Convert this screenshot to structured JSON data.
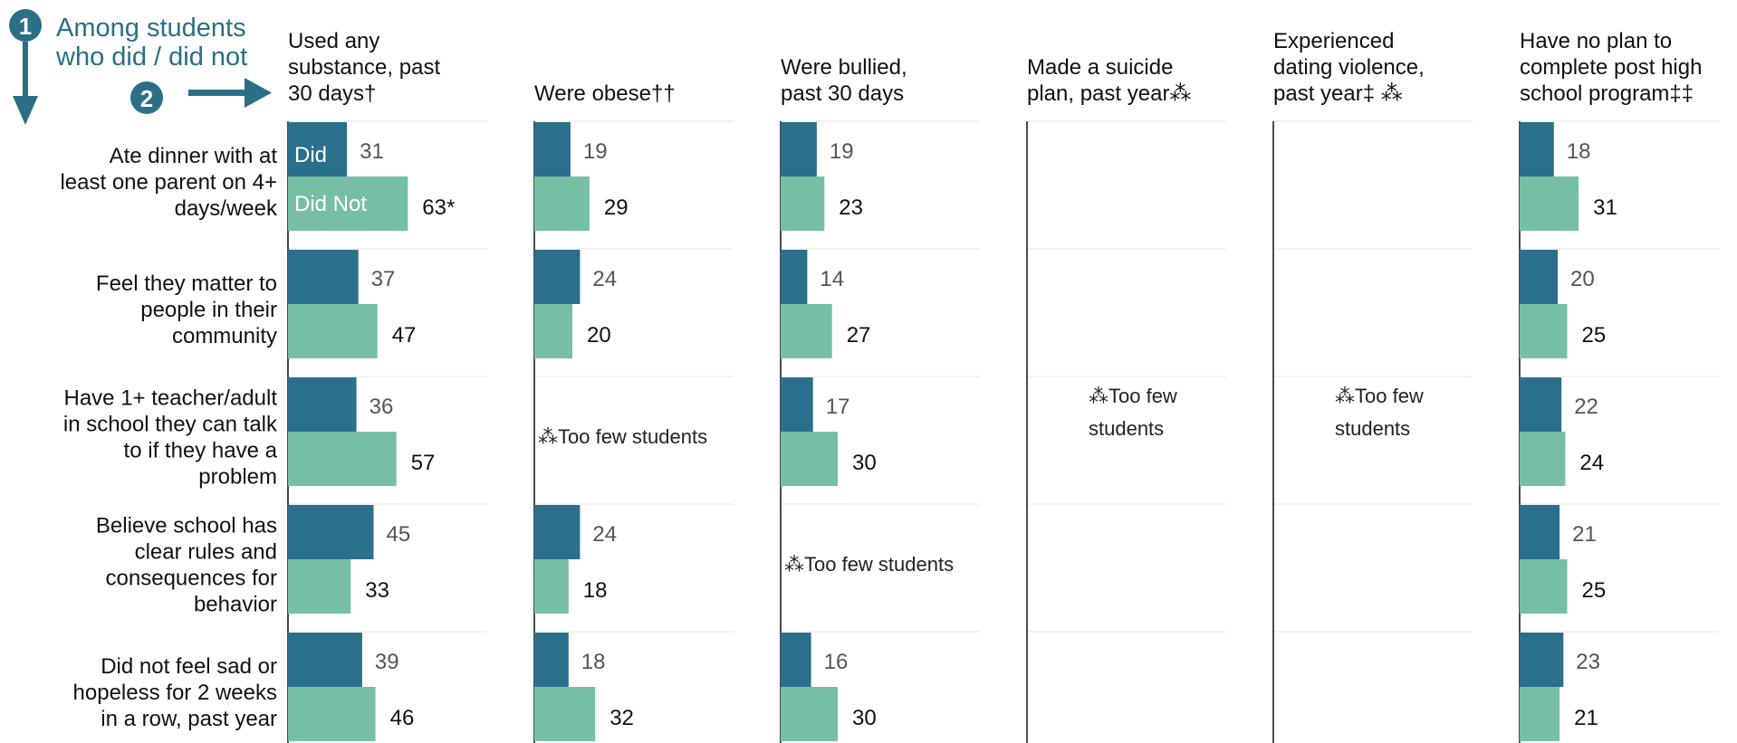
{
  "colors": {
    "did": "#2a6f8c",
    "did_not": "#76bfa6",
    "guide": "#2a6f86"
  },
  "guide": {
    "step1": "1",
    "step2": "2",
    "title_line1": "Among students",
    "title_line2": "who did / did not",
    "arrow_down_icon": "arrow-down-icon",
    "arrow_right_icon": "arrow-right-icon"
  },
  "chart_data": {
    "type": "bar",
    "orientation": "horizontal",
    "legend": [
      "Did",
      "Did Not"
    ],
    "xlim": [
      0,
      100
    ],
    "rows": [
      [
        "Ate dinner with at",
        "least one parent on 4+",
        "days/week"
      ],
      [
        "Feel they matter to",
        "people in their",
        "community"
      ],
      [
        "Have 1+ teacher/adult",
        "in school they can talk",
        "to if they have a",
        "problem"
      ],
      [
        "Believe school has",
        "clear rules and",
        "consequences for",
        "behavior"
      ],
      [
        "Did not feel sad or",
        "hopeless for 2 weeks",
        "in a row, past year"
      ]
    ],
    "columns": [
      {
        "title": [
          "Used any",
          "substance, past",
          "30 days†"
        ],
        "did": [
          31,
          37,
          36,
          45,
          39
        ],
        "did_not": [
          63,
          47,
          57,
          33,
          46
        ],
        "did_not_labels": [
          "63*",
          "47",
          "57",
          "33",
          "46"
        ]
      },
      {
        "title": [
          "Were obese††"
        ],
        "did": [
          19,
          24,
          null,
          24,
          18
        ],
        "did_not": [
          29,
          20,
          null,
          18,
          32
        ],
        "did_not_labels": [
          "29",
          "20",
          null,
          "18",
          "32"
        ],
        "suppressed": [
          null,
          null,
          [
            "⁂Too few students"
          ],
          null,
          null
        ]
      },
      {
        "title": [
          "Were bullied,",
          "past 30 days"
        ],
        "did": [
          19,
          14,
          17,
          null,
          16
        ],
        "did_not": [
          23,
          27,
          30,
          null,
          30
        ],
        "did_not_labels": [
          "23",
          "27",
          "30",
          null,
          "30"
        ],
        "suppressed": [
          null,
          null,
          null,
          [
            "⁂Too few students"
          ],
          null
        ]
      },
      {
        "title": [
          "Made a suicide",
          "plan, past year⁂"
        ],
        "did": [
          null,
          null,
          null,
          null,
          null
        ],
        "did_not": [
          null,
          null,
          null,
          null,
          null
        ],
        "suppressed_all": [
          "⁂Too few",
          "students"
        ]
      },
      {
        "title": [
          "Experienced",
          "dating violence,",
          "past year‡ ⁂"
        ],
        "did": [
          null,
          null,
          null,
          null,
          null
        ],
        "did_not": [
          null,
          null,
          null,
          null,
          null
        ],
        "suppressed_all": [
          "⁂Too few",
          "students"
        ]
      },
      {
        "title": [
          "Have no plan to",
          "complete post high",
          "school program‡‡"
        ],
        "did": [
          18,
          20,
          22,
          21,
          23
        ],
        "did_not": [
          31,
          25,
          24,
          25,
          21
        ],
        "did_not_labels": [
          "31",
          "25",
          "24",
          "25",
          "21"
        ]
      }
    ]
  }
}
